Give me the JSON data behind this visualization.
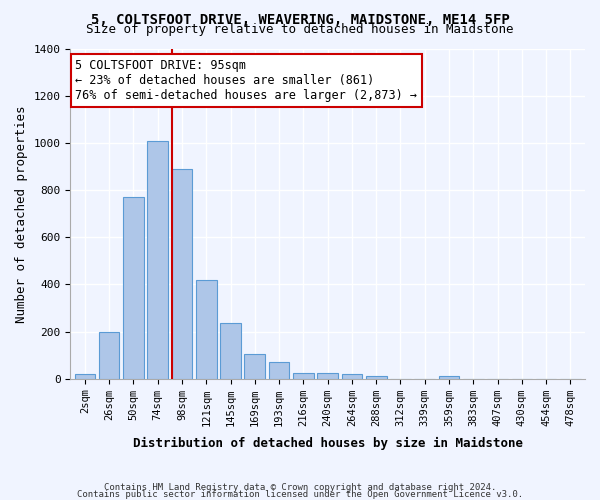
{
  "title": "5, COLTSFOOT DRIVE, WEAVERING, MAIDSTONE, ME14 5FP",
  "subtitle": "Size of property relative to detached houses in Maidstone",
  "xlabel": "Distribution of detached houses by size in Maidstone",
  "ylabel": "Number of detached properties",
  "bar_color": "#aec6e8",
  "bar_edge_color": "#5b9bd5",
  "categories": [
    "2sqm",
    "26sqm",
    "50sqm",
    "74sqm",
    "98sqm",
    "121sqm",
    "145sqm",
    "169sqm",
    "193sqm",
    "216sqm",
    "240sqm",
    "264sqm",
    "288sqm",
    "312sqm",
    "339sqm",
    "359sqm",
    "383sqm",
    "407sqm",
    "430sqm",
    "454sqm",
    "478sqm"
  ],
  "values": [
    20,
    200,
    770,
    1010,
    890,
    420,
    235,
    105,
    70,
    25,
    22,
    18,
    10,
    0,
    0,
    10,
    0,
    0,
    0,
    0,
    0
  ],
  "ylim": [
    0,
    1400
  ],
  "yticks": [
    0,
    200,
    400,
    600,
    800,
    1000,
    1200,
    1400
  ],
  "property_bin_index": 4,
  "vline_x": 3.575,
  "annotation_text": "5 COLTSFOOT DRIVE: 95sqm\n← 23% of detached houses are smaller (861)\n76% of semi-detached houses are larger (2,873) →",
  "annotation_box_color": "#ffffff",
  "annotation_box_edge_color": "#cc0000",
  "vline_color": "#cc0000",
  "footer1": "Contains HM Land Registry data © Crown copyright and database right 2024.",
  "footer2": "Contains public sector information licensed under the Open Government Licence v3.0.",
  "background_color": "#f0f4ff",
  "grid_color": "#ffffff"
}
